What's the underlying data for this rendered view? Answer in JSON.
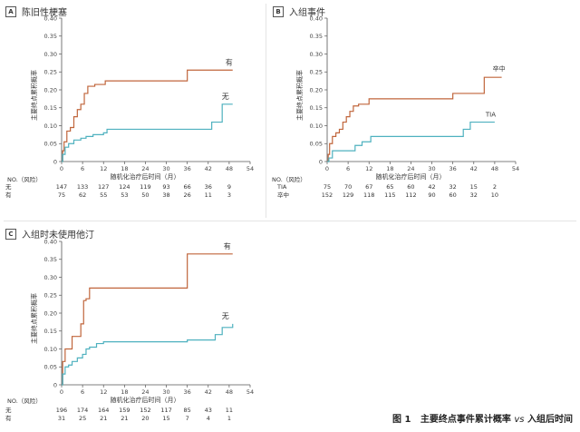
{
  "colors": {
    "series_a": "#c0653b",
    "series_b": "#4eb1bf",
    "axis": "#555555"
  },
  "caption": {
    "fig": "图 1",
    "main": "主要终点事件累计概率",
    "vs": "vs",
    "tail": "入组后时间"
  },
  "chart_data": [
    {
      "type": "line",
      "step": true,
      "panel_letter": "A",
      "title": "陈旧性梗塞",
      "ylabel": "主要终点累积概率",
      "xlabel": "随机化治疗后时间（月）",
      "xlim": [
        0,
        54
      ],
      "ylim": [
        0,
        0.4
      ],
      "xticks": [
        0,
        6,
        12,
        18,
        24,
        30,
        36,
        42,
        48,
        54
      ],
      "yticks": [
        "0",
        "0.05",
        "0.10",
        "0.15",
        "0.20",
        "0.25",
        "0.30",
        "0.35",
        "0.40"
      ],
      "series": [
        {
          "name": "有",
          "color": "#c0653b",
          "x": [
            0,
            0.3,
            0.7,
            1.5,
            2.5,
            3.5,
            4.5,
            5.5,
            6.5,
            7.5,
            9.5,
            12.5,
            36,
            44,
            49
          ],
          "y": [
            0,
            0.03,
            0.055,
            0.085,
            0.095,
            0.125,
            0.145,
            0.16,
            0.19,
            0.21,
            0.215,
            0.225,
            0.255,
            0.255,
            0.255
          ]
        },
        {
          "name": "无",
          "color": "#4eb1bf",
          "x": [
            0,
            0.3,
            1,
            2,
            3.5,
            5.5,
            7,
            9,
            12,
            13,
            36,
            43,
            46,
            49
          ],
          "y": [
            0,
            0.02,
            0.04,
            0.05,
            0.06,
            0.065,
            0.07,
            0.075,
            0.08,
            0.09,
            0.09,
            0.11,
            0.16,
            0.16
          ]
        }
      ],
      "risk_header": "NO.（风险）",
      "risk_rows": [
        {
          "label": "无",
          "values": [
            "147",
            "133",
            "127",
            "124",
            "119",
            "93",
            "66",
            "36",
            "9"
          ]
        },
        {
          "label": "有",
          "values": [
            "75",
            "62",
            "55",
            "53",
            "50",
            "38",
            "26",
            "11",
            "3"
          ]
        }
      ]
    },
    {
      "type": "line",
      "step": true,
      "panel_letter": "B",
      "title": "入组事件",
      "ylabel": "主要终点累积概率",
      "xlabel": "随机化治疗后时间（月）",
      "xlim": [
        0,
        54
      ],
      "ylim": [
        0,
        0.4
      ],
      "xticks": [
        0,
        6,
        12,
        18,
        24,
        30,
        36,
        42,
        48,
        54
      ],
      "yticks": [
        "0",
        "0.05",
        "0.10",
        "0.15",
        "0.20",
        "0.25",
        "0.30",
        "0.35",
        "0.40"
      ],
      "series": [
        {
          "name": "卒中",
          "color": "#c0653b",
          "x": [
            0,
            0.3,
            0.7,
            1.5,
            2.5,
            3.5,
            4.5,
            5.5,
            6.5,
            7.5,
            9,
            12,
            36,
            45,
            50
          ],
          "y": [
            0,
            0.02,
            0.05,
            0.07,
            0.08,
            0.09,
            0.11,
            0.125,
            0.14,
            0.155,
            0.16,
            0.175,
            0.19,
            0.235,
            0.235
          ]
        },
        {
          "name": "TIA",
          "color": "#4eb1bf",
          "x": [
            0,
            0.5,
            1.5,
            8,
            10,
            12.5,
            39,
            41,
            48
          ],
          "y": [
            0,
            0.01,
            0.03,
            0.045,
            0.055,
            0.07,
            0.09,
            0.11,
            0.11
          ]
        }
      ],
      "risk_header": "NO.（风险）",
      "risk_rows": [
        {
          "label": "TIA",
          "values": [
            "75",
            "70",
            "67",
            "65",
            "60",
            "42",
            "32",
            "15",
            "2"
          ]
        },
        {
          "label": "卒中",
          "values": [
            "152",
            "129",
            "118",
            "115",
            "112",
            "90",
            "60",
            "32",
            "10"
          ]
        }
      ]
    },
    {
      "type": "line",
      "step": true,
      "panel_letter": "C",
      "title": "入组时未使用他汀",
      "ylabel": "主要终点累积概率",
      "xlabel": "随机化治疗后时间（月）",
      "xlim": [
        0,
        54
      ],
      "ylim": [
        0,
        0.4
      ],
      "xticks": [
        0,
        6,
        12,
        18,
        24,
        30,
        36,
        42,
        48,
        54
      ],
      "yticks": [
        "0",
        "0.05",
        "0.10",
        "0.15",
        "0.20",
        "0.25",
        "0.30",
        "0.35",
        "0.40"
      ],
      "series": [
        {
          "name": "有",
          "color": "#c0653b",
          "x": [
            0,
            0.3,
            1,
            3,
            5.5,
            6.3,
            7,
            8,
            36,
            49
          ],
          "y": [
            0,
            0.065,
            0.1,
            0.135,
            0.17,
            0.235,
            0.24,
            0.27,
            0.365,
            0.365
          ]
        },
        {
          "name": "无",
          "color": "#4eb1bf",
          "x": [
            0,
            0.3,
            1,
            2,
            3,
            4.5,
            6,
            7,
            8,
            10,
            12,
            36,
            44,
            46,
            49
          ],
          "y": [
            0,
            0.03,
            0.05,
            0.055,
            0.065,
            0.075,
            0.085,
            0.1,
            0.105,
            0.115,
            0.12,
            0.125,
            0.14,
            0.16,
            0.17
          ]
        }
      ],
      "risk_header": "NO.（风险）",
      "risk_rows": [
        {
          "label": "无",
          "values": [
            "196",
            "174",
            "164",
            "159",
            "152",
            "117",
            "85",
            "43",
            "11"
          ]
        },
        {
          "label": "有",
          "values": [
            "31",
            "25",
            "21",
            "21",
            "20",
            "15",
            "7",
            "4",
            "1"
          ]
        }
      ]
    }
  ]
}
